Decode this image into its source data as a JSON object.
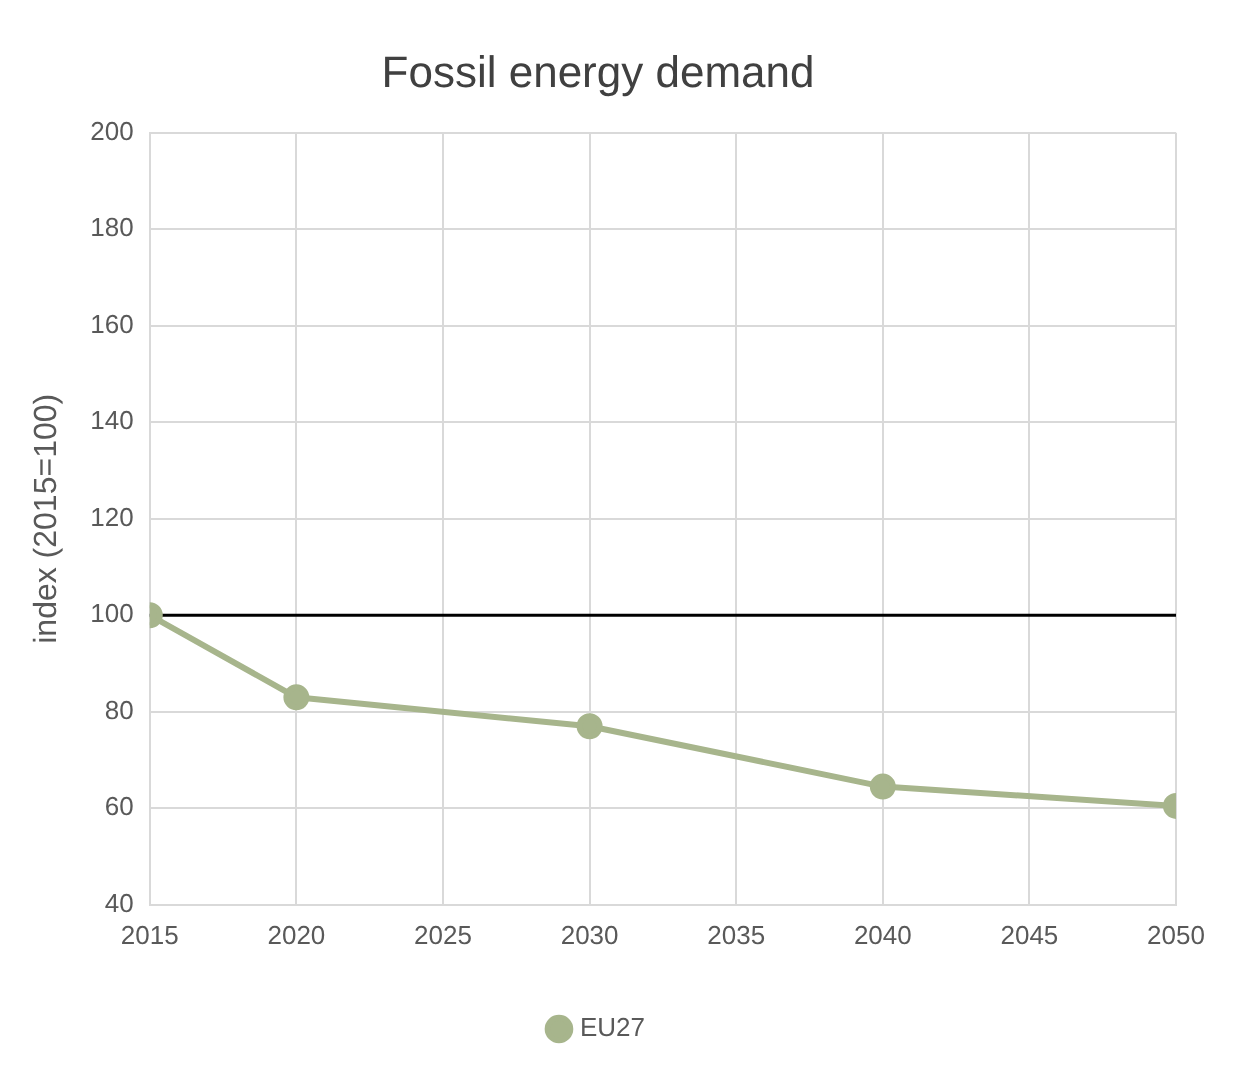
{
  "chart_data": {
    "type": "line",
    "title": "Fossil energy demand",
    "ylabel": "index (2015=100)",
    "x": [
      2015,
      2020,
      2030,
      2040,
      2050
    ],
    "series": [
      {
        "name": "EU27",
        "color": "#a7b58c",
        "values": [
          100,
          83,
          77,
          64.5,
          60.5
        ]
      }
    ],
    "xlim": [
      2015,
      2050
    ],
    "xticks": [
      2015,
      2020,
      2025,
      2030,
      2035,
      2040,
      2045,
      2050
    ],
    "ylim": [
      40,
      200
    ],
    "yticks": [
      40,
      60,
      80,
      100,
      120,
      140,
      160,
      180,
      200
    ],
    "ref_lines": [
      {
        "axis": "y",
        "value": 100,
        "color": "#000000"
      }
    ],
    "grid": true,
    "legend": "bottom",
    "marker": "circle",
    "line_style": "solid"
  }
}
